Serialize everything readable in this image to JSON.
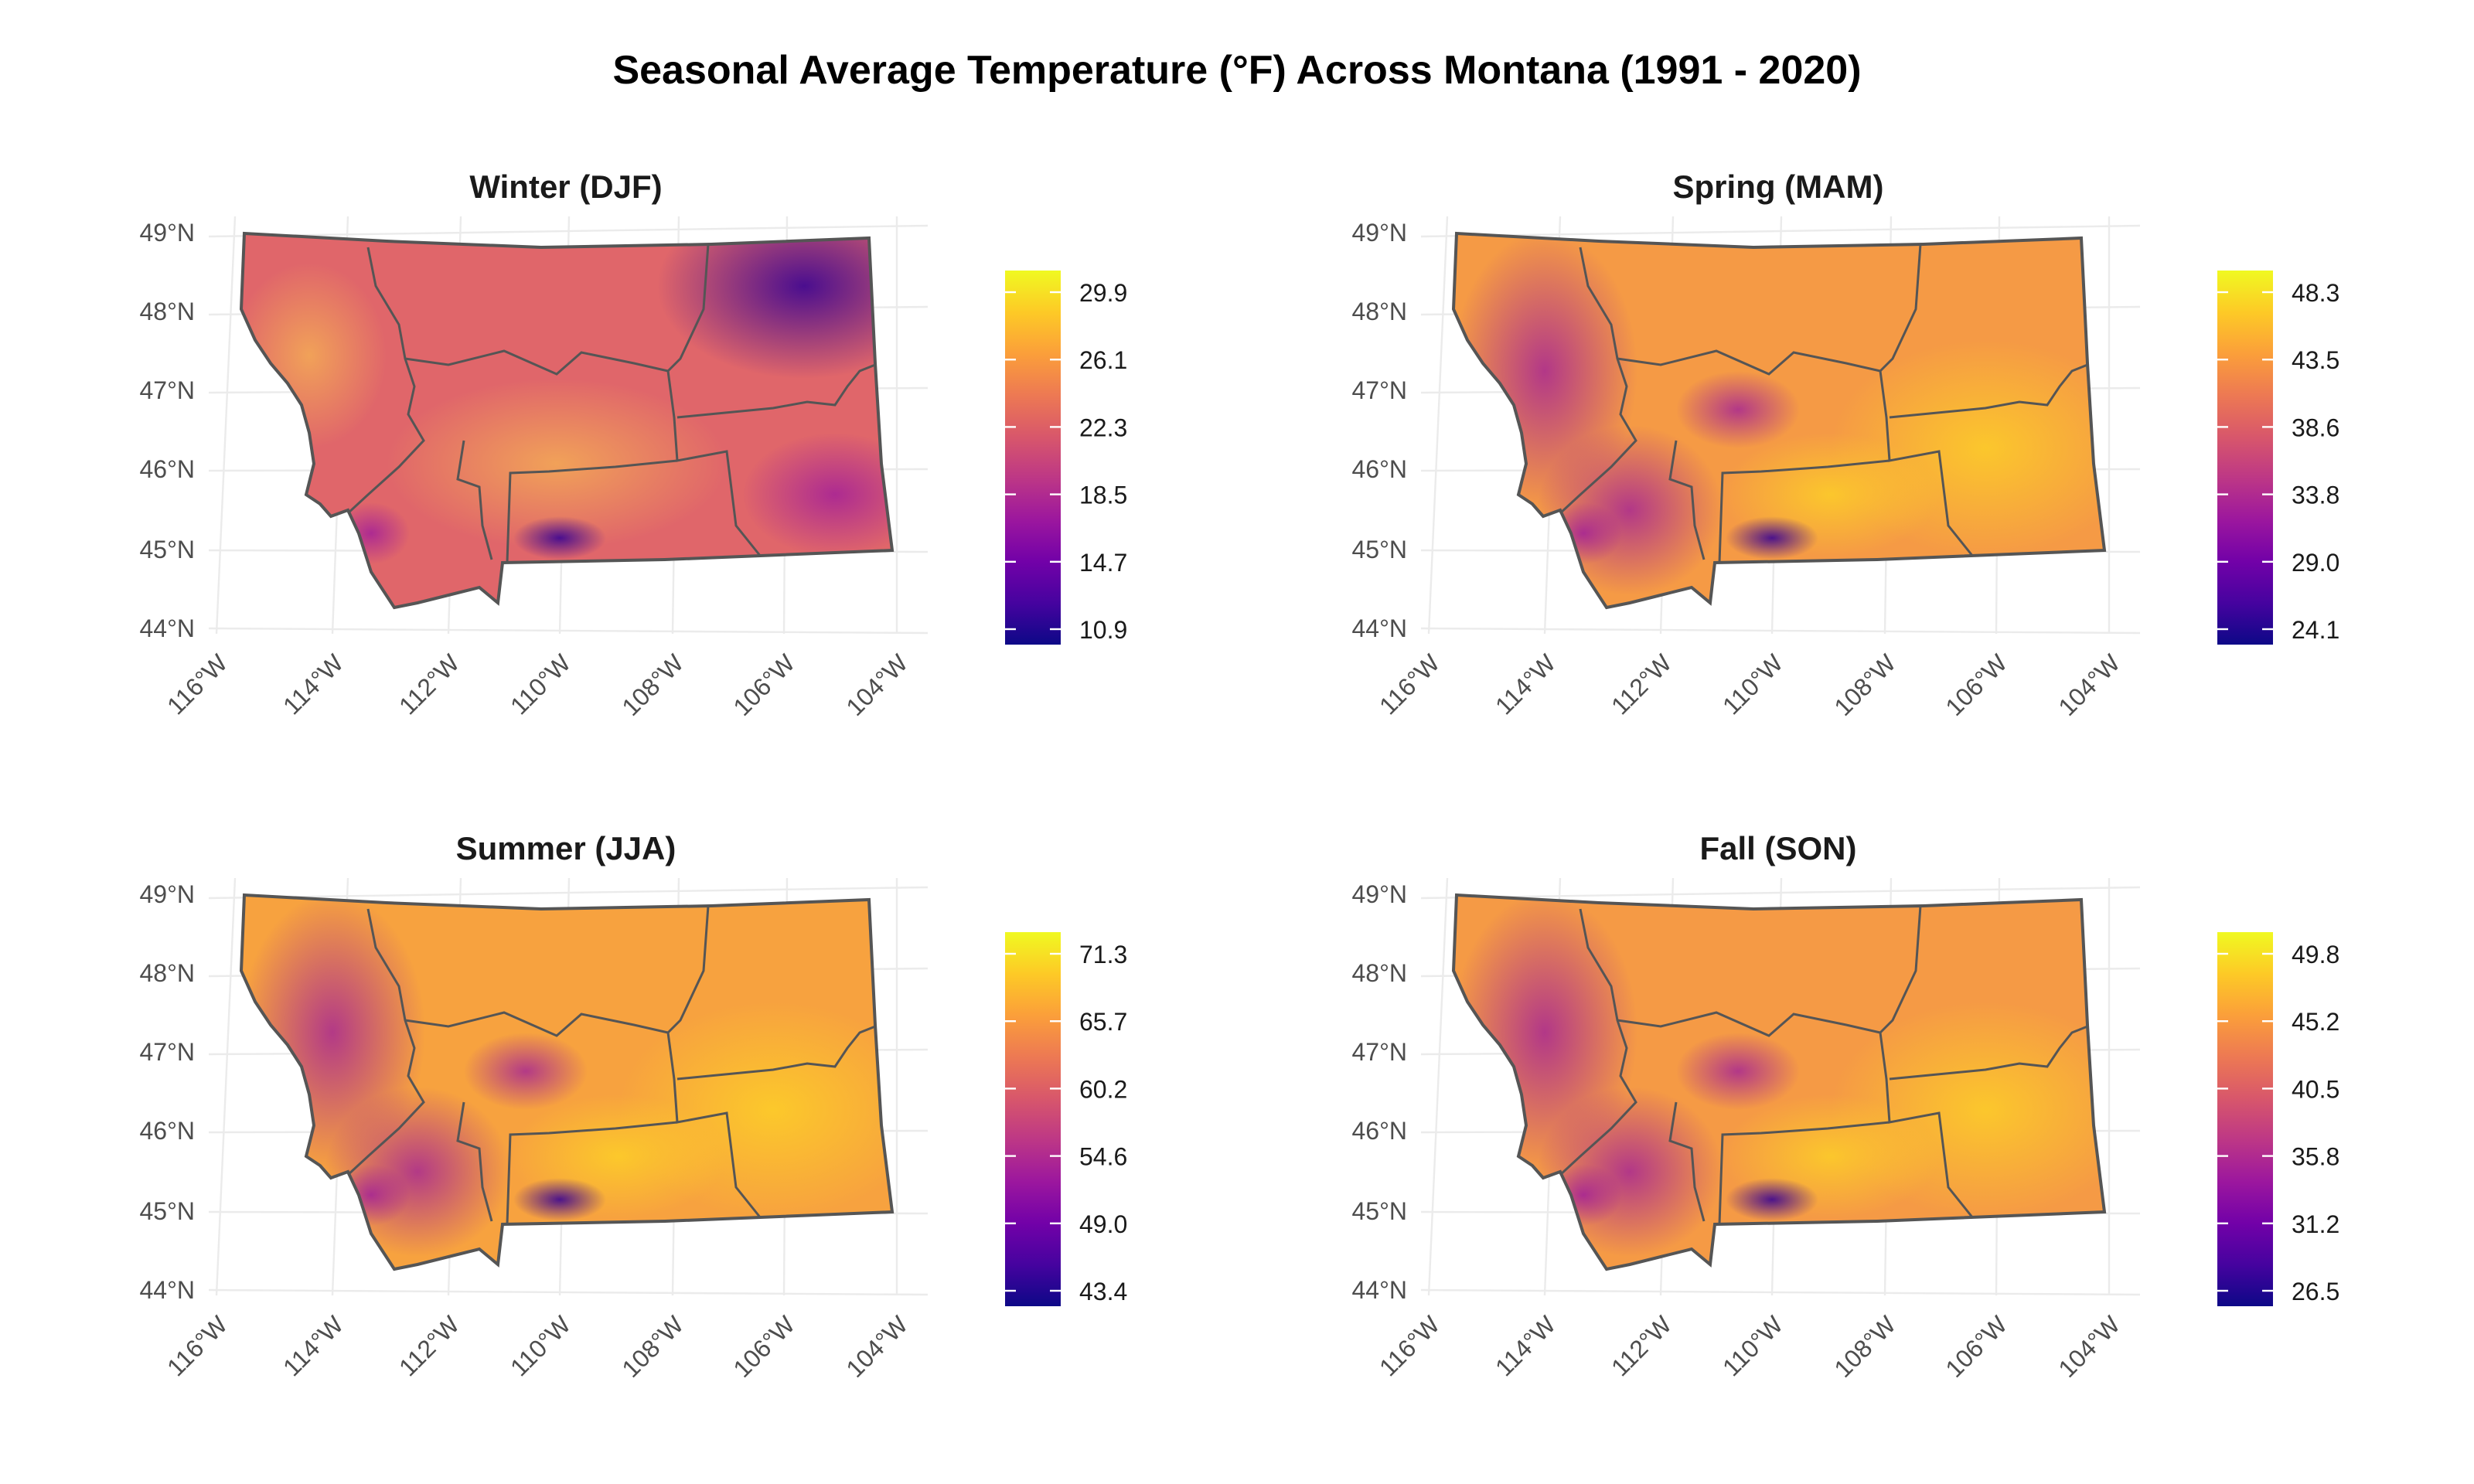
{
  "title": "Seasonal Average Temperature (°F) Across Montana (1991 - 2020)",
  "lat_labels": [
    "49°N",
    "48°N",
    "47°N",
    "46°N",
    "45°N",
    "44°N"
  ],
  "lon_labels": [
    "116°W",
    "114°W",
    "112°W",
    "110°W",
    "108°W",
    "106°W",
    "104°W"
  ],
  "colormap": [
    "#0d0887",
    "#46039f",
    "#7201a8",
    "#9c179e",
    "#bd3786",
    "#d8576b",
    "#ed7953",
    "#fb9f3a",
    "#fdca26",
    "#f0f921"
  ],
  "colors": {
    "state_outline": "#555555",
    "grid": "#ebebeb",
    "axis_text": "#4d4d4d"
  },
  "panels": [
    {
      "title": "Winter (DJF)",
      "legend_ticks": [
        "29.9",
        "26.1",
        "22.3",
        "18.5",
        "14.7",
        "10.9"
      ]
    },
    {
      "title": "Spring (MAM)",
      "legend_ticks": [
        "48.3",
        "43.5",
        "38.6",
        "33.8",
        "29.0",
        "24.1"
      ]
    },
    {
      "title": "Summer (JJA)",
      "legend_ticks": [
        "71.3",
        "65.7",
        "60.2",
        "54.6",
        "49.0",
        "43.4"
      ]
    },
    {
      "title": "Fall (SON)",
      "legend_ticks": [
        "49.8",
        "45.2",
        "40.5",
        "35.8",
        "31.2",
        "26.5"
      ]
    }
  ]
}
